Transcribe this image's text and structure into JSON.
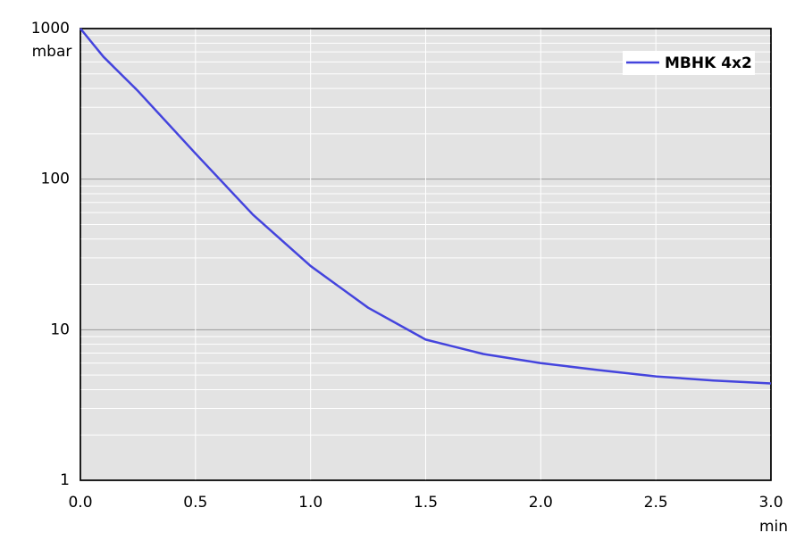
{
  "chart_data": {
    "type": "line",
    "y_label": "mbar",
    "x_label": "min",
    "x": [
      0,
      0.1,
      0.25,
      0.5,
      0.75,
      1.0,
      1.25,
      1.5,
      1.75,
      2.0,
      2.25,
      2.5,
      2.75,
      3.0
    ],
    "series": [
      {
        "name": "MBHK 4x2",
        "color": "#4444dd",
        "values": [
          1000,
          650,
          385,
          148,
          58,
          26.5,
          14,
          8.6,
          6.9,
          6.0,
          5.4,
          4.9,
          4.6,
          4.4
        ]
      }
    ],
    "xlim": [
      0,
      3.0
    ],
    "xticks": [
      {
        "value": 0,
        "label": "0.0"
      },
      0.5,
      {
        "value": 1,
        "label": "1.0"
      },
      1.5,
      {
        "value": 2,
        "label": "2.0"
      },
      2.5,
      {
        "value": 3,
        "label": "3.0"
      }
    ],
    "ylim": [
      1,
      1000
    ],
    "yticks": [
      1,
      10,
      100,
      1000
    ],
    "y_minor_ticks": [
      2,
      3,
      4,
      5,
      6,
      7,
      8,
      9,
      20,
      30,
      40,
      50,
      60,
      70,
      80,
      90,
      200,
      300,
      400,
      500,
      600,
      700,
      800,
      900
    ],
    "y_scale": "log",
    "grid": true,
    "legend": "upper right"
  }
}
